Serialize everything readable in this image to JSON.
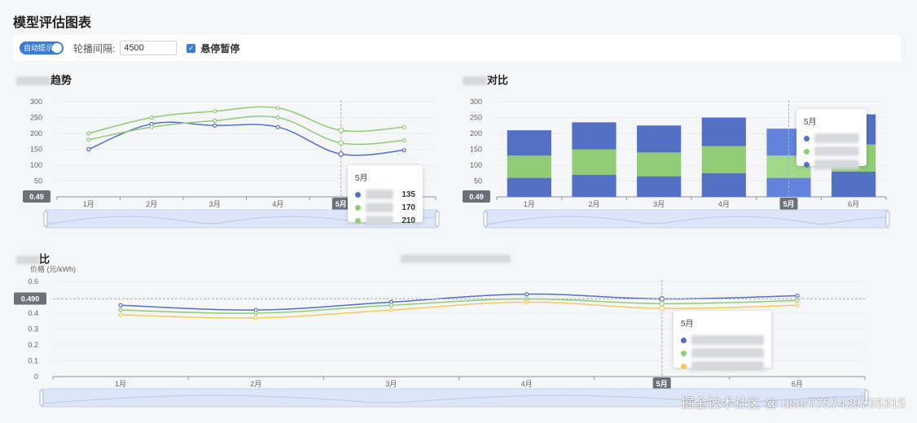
{
  "page": {
    "title": "模型评估图表"
  },
  "toolbar": {
    "auto_tip_label": "自动提示",
    "interval_label": "轮播间隔:",
    "interval_value": "4500",
    "hover_pause_label": "悬停暂停"
  },
  "charts": {
    "trend": {
      "title_visible": "趋势"
    },
    "ratio": {
      "title_visible": "对比"
    },
    "price": {
      "title_visible": "比",
      "y_unit": "价格 (元/kWh)"
    }
  },
  "colors": {
    "blue": "#5470c6",
    "green": "#91cc75",
    "yellow": "#fac858",
    "grid": "#eceef2",
    "axis": "#8d939c"
  },
  "chart_data": [
    {
      "type": "line",
      "categories": [
        "1月",
        "2月",
        "3月",
        "4月",
        "5月",
        "6月"
      ],
      "series": [
        {
          "values": [
            150,
            230,
            225,
            220,
            135,
            147
          ],
          "color": "#5470c6"
        },
        {
          "values": [
            180,
            220,
            240,
            250,
            170,
            178
          ],
          "color": "#91cc75"
        },
        {
          "values": [
            200,
            250,
            270,
            280,
            210,
            220
          ],
          "color": "#91cc75"
        }
      ],
      "y_ticks": [
        300,
        250,
        200,
        150,
        100,
        50
      ],
      "ylim": [
        0,
        300
      ],
      "axis_pointer_label": "0.49",
      "highlight_category": "5月",
      "tooltip": {
        "title": "5月",
        "values": [
          "135",
          "170",
          "210"
        ]
      },
      "grid": true
    },
    {
      "type": "bar",
      "stacked": true,
      "categories": [
        "1月",
        "2月",
        "3月",
        "4月",
        "5月",
        "6月"
      ],
      "series": [
        {
          "values": [
            60,
            70,
            65,
            75,
            60,
            80
          ],
          "color": "#5470c6"
        },
        {
          "values": [
            70,
            80,
            75,
            85,
            70,
            85
          ],
          "color": "#91cc75"
        },
        {
          "values": [
            80,
            85,
            85,
            90,
            85,
            95
          ],
          "color": "#5470c6"
        }
      ],
      "y_ticks": [
        300,
        250,
        200,
        150,
        100,
        50
      ],
      "ylim": [
        0,
        300
      ],
      "axis_pointer_label": "0.49",
      "highlight_category": "5月",
      "tooltip": {
        "title": "5月"
      },
      "grid": true
    },
    {
      "type": "line",
      "categories": [
        "1月",
        "2月",
        "3月",
        "4月",
        "5月",
        "6月"
      ],
      "series": [
        {
          "values": [
            0.45,
            0.42,
            0.47,
            0.52,
            0.49,
            0.51
          ],
          "color": "#5470c6"
        },
        {
          "values": [
            0.42,
            0.4,
            0.45,
            0.49,
            0.46,
            0.48
          ],
          "color": "#91cc75"
        },
        {
          "values": [
            0.39,
            0.37,
            0.42,
            0.47,
            0.43,
            0.45
          ],
          "color": "#fac858"
        }
      ],
      "y_ticks": [
        "0.6",
        "0.5",
        "0.4",
        "0.3",
        "0.2",
        "0.1",
        "0"
      ],
      "ylim": [
        0,
        0.6
      ],
      "ylabel": "价格 (元/kWh)",
      "axis_pointer_label": "0.490",
      "axis_pointer_value": 0.49,
      "highlight_category": "5月",
      "tooltip": {
        "title": "5月"
      },
      "grid": true
    }
  ],
  "watermark": "掘金技术社区 @ user7757429735315"
}
